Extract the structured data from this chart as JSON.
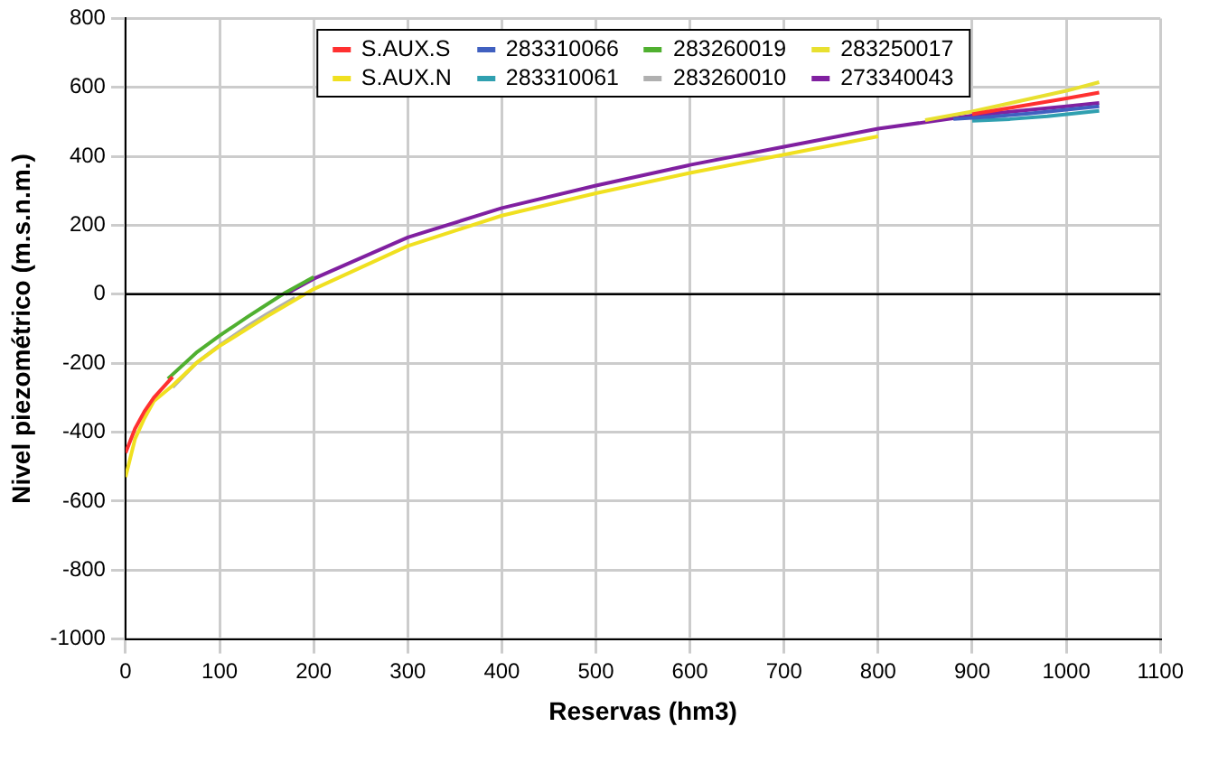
{
  "chart_data": {
    "type": "line",
    "xlabel": "Reservas (hm3)",
    "ylabel": "Nivel piezométrico (m.s.n.m.)",
    "xlim": [
      0,
      1100
    ],
    "xticks": [
      0,
      100,
      200,
      300,
      400,
      500,
      600,
      700,
      800,
      900,
      1000,
      1100
    ],
    "ylim": [
      -1000,
      800
    ],
    "yticks": [
      -1000,
      -800,
      -600,
      -400,
      -200,
      0,
      200,
      400,
      600,
      800
    ],
    "grid": true,
    "legend": "top",
    "marker": "none",
    "line_style": "solid",
    "ref_lines": [
      {
        "axis": "y",
        "value": 0,
        "color": "#000000"
      }
    ],
    "series": [
      {
        "name": "S.AUX.S",
        "color": "#ff3030",
        "x": [
          0,
          10,
          20,
          30,
          50,
          500,
          900,
          950,
          1000,
          1035
        ],
        "values": [
          -460,
          -390,
          -340,
          -300,
          -240,
          null,
          522,
          545,
          568,
          585
        ]
      },
      {
        "name": "283310066",
        "color": "#4060c0",
        "x": [
          880,
          920,
          960,
          1000,
          1035
        ],
        "values": [
          508,
          515,
          524,
          535,
          545
        ]
      },
      {
        "name": "283260019",
        "color": "#50b030",
        "x": [
          45,
          75,
          100,
          130,
          150,
          170,
          200
        ],
        "values": [
          -245,
          -170,
          -120,
          -65,
          -30,
          5,
          50
        ]
      },
      {
        "name": "283250017",
        "color": "#e8e030",
        "x": [
          850,
          900,
          950,
          1000,
          1035
        ],
        "values": [
          505,
          530,
          560,
          590,
          615
        ]
      },
      {
        "name": "S.AUX.N",
        "color": "#f0e020",
        "x": [
          0,
          10,
          20,
          30,
          50,
          75,
          100,
          150,
          200,
          300,
          400,
          500,
          600,
          700,
          800
        ],
        "values": [
          -530,
          -420,
          -360,
          -310,
          -265,
          -200,
          -150,
          -65,
          15,
          140,
          228,
          293,
          352,
          405,
          458
        ]
      },
      {
        "name": "283310061",
        "color": "#30a0b0",
        "x": [
          900,
          940,
          980,
          1035
        ],
        "values": [
          503,
          508,
          516,
          532
        ]
      },
      {
        "name": "283260010",
        "color": "#b0b0b0",
        "x": [
          50,
          75,
          100,
          130,
          150,
          180
        ],
        "values": [
          -270,
          -200,
          -148,
          -92,
          -58,
          -10
        ]
      },
      {
        "name": "273340043",
        "color": "#8020a0",
        "x": [
          170,
          200,
          300,
          400,
          500,
          600,
          700,
          800,
          900,
          950,
          1000,
          1035
        ],
        "values": [
          0,
          45,
          165,
          250,
          315,
          375,
          428,
          480,
          518,
          532,
          545,
          555
        ]
      }
    ]
  }
}
